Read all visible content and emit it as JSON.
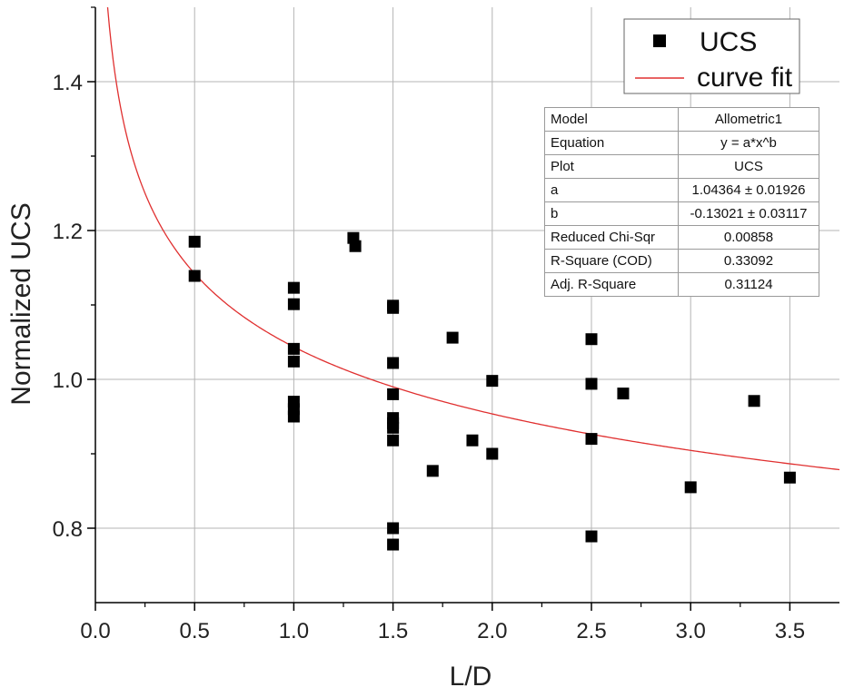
{
  "chart_data": {
    "type": "scatter",
    "title": "",
    "xlabel": "L/D",
    "ylabel": "Normalized UCS",
    "xlim": [
      0.0,
      3.75
    ],
    "ylim": [
      0.7,
      1.5
    ],
    "xticks": [
      "0.0",
      "0.5",
      "1.0",
      "1.5",
      "2.0",
      "2.5",
      "3.0",
      "3.5"
    ],
    "xtick_values": [
      0.0,
      0.5,
      1.0,
      1.5,
      2.0,
      2.5,
      3.0,
      3.5
    ],
    "yticks": [
      "0.8",
      "1.0",
      "1.2",
      "1.4"
    ],
    "ytick_values": [
      0.8,
      1.0,
      1.2,
      1.4
    ],
    "grid": true,
    "series": [
      {
        "name": "UCS",
        "marker": "square",
        "color": "#000000",
        "points": [
          [
            0.5,
            1.185
          ],
          [
            0.5,
            1.139
          ],
          [
            1.0,
            1.123
          ],
          [
            1.0,
            1.101
          ],
          [
            1.0,
            1.041
          ],
          [
            1.0,
            1.024
          ],
          [
            1.0,
            0.97
          ],
          [
            1.0,
            0.96
          ],
          [
            1.0,
            0.95
          ],
          [
            1.3,
            1.19
          ],
          [
            1.31,
            1.179
          ],
          [
            1.5,
            1.099
          ],
          [
            1.5,
            1.096
          ],
          [
            1.5,
            1.022
          ],
          [
            1.5,
            0.98
          ],
          [
            1.5,
            0.948
          ],
          [
            1.5,
            0.941
          ],
          [
            1.5,
            0.935
          ],
          [
            1.5,
            0.918
          ],
          [
            1.5,
            0.8
          ],
          [
            1.5,
            0.778
          ],
          [
            1.7,
            0.877
          ],
          [
            1.8,
            1.056
          ],
          [
            1.9,
            0.918
          ],
          [
            2.0,
            0.998
          ],
          [
            2.0,
            0.9
          ],
          [
            2.5,
            1.054
          ],
          [
            2.5,
            0.994
          ],
          [
            2.5,
            0.92
          ],
          [
            2.5,
            0.789
          ],
          [
            2.66,
            0.981
          ],
          [
            3.0,
            0.855
          ],
          [
            3.32,
            0.971
          ],
          [
            3.5,
            0.868
          ]
        ]
      },
      {
        "name": "curve fit",
        "type": "line",
        "color": "#e03030",
        "model": "y = 1.04364 * x^(-0.13021)",
        "a": 1.04364,
        "b": -0.13021
      }
    ],
    "legend": {
      "position": "top-right",
      "entries": [
        "UCS",
        "curve fit"
      ]
    }
  },
  "fit_table": {
    "rows": [
      {
        "key": "Model",
        "value": "Allometric1"
      },
      {
        "key": "Equation",
        "value": "y = a*x^b"
      },
      {
        "key": "Plot",
        "value": "UCS"
      },
      {
        "key": "a",
        "value": "1.04364 ± 0.01926"
      },
      {
        "key": "b",
        "value": "-0.13021 ± 0.03117"
      },
      {
        "key": "Reduced Chi-Sqr",
        "value": "0.00858"
      },
      {
        "key": "R-Square (COD)",
        "value": "0.33092"
      },
      {
        "key": "Adj. R-Square",
        "value": "0.31124"
      }
    ]
  }
}
